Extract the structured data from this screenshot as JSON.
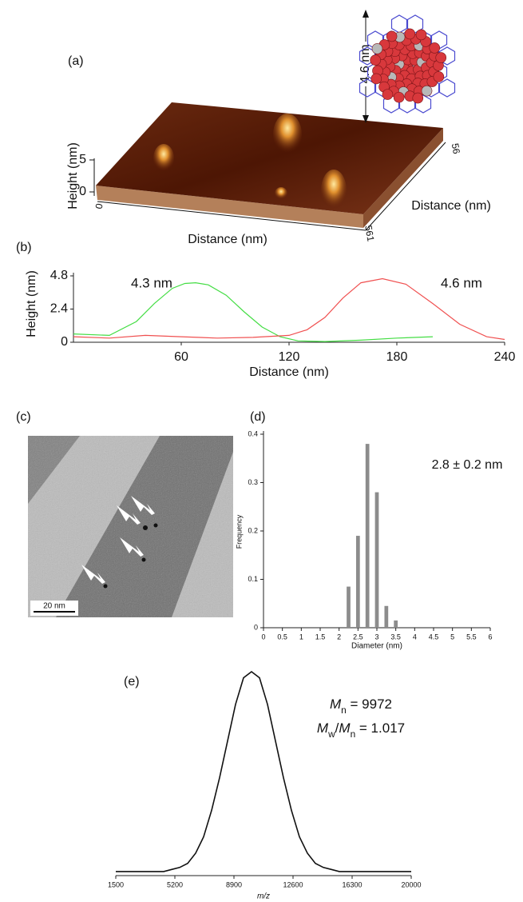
{
  "figure_a": {
    "panel_label": "(a)",
    "scale_label": "4.6 nm",
    "z_axis_label": "Height (nm)",
    "z_ticks": [
      5,
      0
    ],
    "origin_label": 0,
    "x_axis_label": "Distance (nm)",
    "x_end_label": 561,
    "y_end_label": 56,
    "y_axis_label": "Distance (nm)"
  },
  "figure_c": {
    "panel_label": "(c)",
    "scale_bar": "20 nm"
  },
  "chart_data": [
    {
      "type": "line",
      "panel_label": "(b)",
      "x_label": "Distance (nm)",
      "y_label": "Height (nm)",
      "xlim": [
        0,
        240
      ],
      "xticks": [
        60,
        120,
        180,
        240
      ],
      "ylim": [
        0,
        4.8
      ],
      "yticks": [
        0,
        2.4,
        4.8
      ],
      "series": [
        {
          "color": "#44dd44",
          "x": [
            0,
            20,
            35,
            45,
            55,
            62,
            68,
            75,
            85,
            95,
            105,
            115,
            125,
            140,
            160,
            180,
            200
          ],
          "values": [
            0.6,
            0.5,
            1.5,
            2.8,
            3.9,
            4.25,
            4.3,
            4.15,
            3.4,
            2.2,
            1.1,
            0.4,
            0.1,
            0.05,
            0.15,
            0.3,
            0.4
          ]
        },
        {
          "color": "#f05050",
          "x": [
            0,
            20,
            40,
            60,
            80,
            100,
            120,
            130,
            140,
            150,
            160,
            172,
            185,
            200,
            215,
            230,
            240
          ],
          "values": [
            0.4,
            0.3,
            0.5,
            0.4,
            0.3,
            0.35,
            0.5,
            0.9,
            1.8,
            3.2,
            4.3,
            4.6,
            4.2,
            2.8,
            1.3,
            0.4,
            0.2
          ]
        }
      ],
      "annotations": [
        {
          "text": "4.3 nm",
          "color": "#44dd44"
        },
        {
          "text": "4.6 nm",
          "color": "#f05050"
        }
      ]
    },
    {
      "type": "bar",
      "panel_label": "(d)",
      "x_label": "Diameter (nm)",
      "y_label": "Frequency",
      "xlim": [
        0,
        6
      ],
      "xticks": [
        0,
        0.5,
        1,
        1.5,
        2,
        2.5,
        3,
        3.5,
        4,
        4.5,
        5,
        5.5,
        6
      ],
      "ylim": [
        0,
        0.4
      ],
      "yticks": [
        0,
        0.1,
        0.2,
        0.3,
        0.4
      ],
      "color": "#8c8c8c",
      "x": [
        2.25,
        2.5,
        2.75,
        3,
        3.25,
        3.5
      ],
      "values": [
        0.085,
        0.19,
        0.38,
        0.28,
        0.045,
        0.015
      ],
      "annotations": [
        {
          "text": "2.8 ± 0.2 nm",
          "color": "#000000"
        }
      ]
    },
    {
      "type": "line",
      "panel_label": "(e)",
      "x_label": "m/z",
      "xlim": [
        1500,
        20000
      ],
      "xticks": [
        1500,
        5200,
        8900,
        12600,
        16300,
        20000
      ],
      "ylim": [
        0,
        1
      ],
      "series": [
        {
          "color": "#111111",
          "x": [
            1500,
            2000,
            2500,
            3000,
            3500,
            4000,
            4500,
            5000,
            5500,
            6000,
            6500,
            7000,
            7500,
            8000,
            8500,
            9000,
            9500,
            10000,
            10500,
            11000,
            11500,
            12000,
            12500,
            13000,
            13500,
            14000,
            14500,
            15000,
            15500,
            16000,
            16500,
            17000,
            17500,
            18000,
            18500,
            19000,
            19500,
            20000
          ],
          "values": [
            0.02,
            0.02,
            0.02,
            0.02,
            0.02,
            0.02,
            0.02,
            0.03,
            0.04,
            0.06,
            0.11,
            0.19,
            0.32,
            0.48,
            0.66,
            0.84,
            0.97,
            1.0,
            0.97,
            0.84,
            0.66,
            0.48,
            0.32,
            0.19,
            0.11,
            0.06,
            0.04,
            0.03,
            0.02,
            0.02,
            0.02,
            0.02,
            0.02,
            0.02,
            0.02,
            0.02,
            0.02,
            0.02
          ]
        }
      ],
      "annotations": [
        {
          "parts": [
            {
              "text": "M",
              "italic": true
            },
            {
              "text": "n",
              "sub": true
            },
            {
              "text": " = 9972"
            }
          ]
        },
        {
          "parts": [
            {
              "text": "M",
              "italic": true
            },
            {
              "text": "w",
              "sub": true
            },
            {
              "text": "/"
            },
            {
              "text": "M",
              "italic": true
            },
            {
              "text": "n",
              "sub": true
            },
            {
              "text": " = 1.017"
            }
          ]
        }
      ]
    }
  ]
}
